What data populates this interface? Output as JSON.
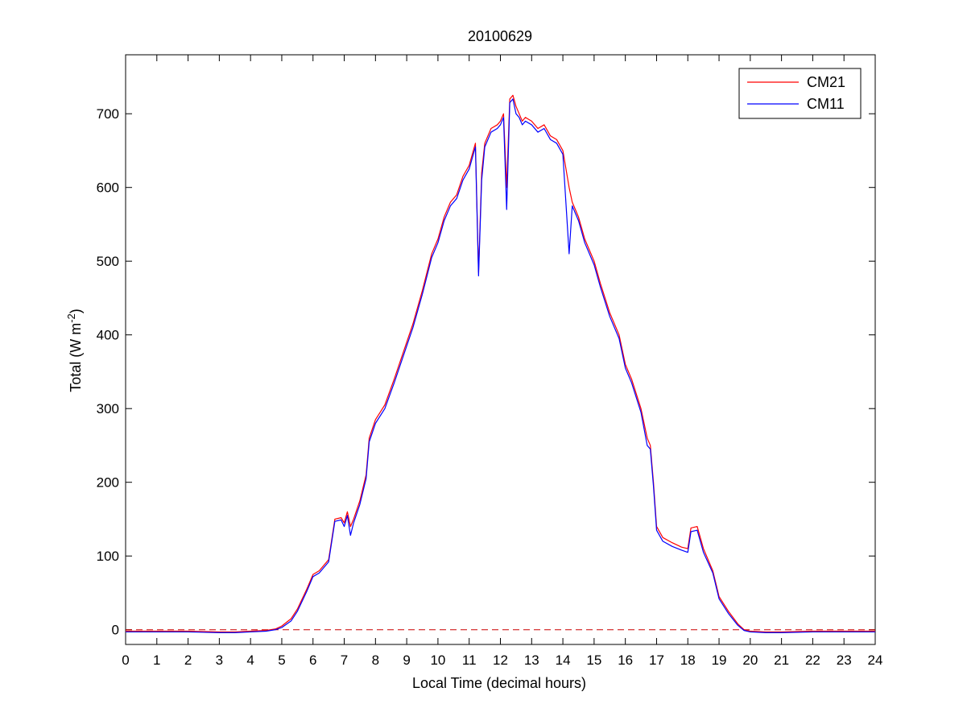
{
  "chart_data": {
    "type": "line",
    "title": "20100629",
    "xlabel": "Local Time (decimal hours)",
    "ylabel": {
      "main": "Total (W m",
      "sup": "-2",
      "close": ")"
    },
    "xlim": [
      0,
      24
    ],
    "ylim": [
      -20,
      780
    ],
    "xticks": [
      0,
      1,
      2,
      3,
      4,
      5,
      6,
      7,
      8,
      9,
      10,
      11,
      12,
      13,
      14,
      15,
      16,
      17,
      18,
      19,
      20,
      21,
      22,
      23,
      24
    ],
    "yticks": [
      0,
      100,
      200,
      300,
      400,
      500,
      600,
      700
    ],
    "grid": false,
    "legend": {
      "placement": "top-right"
    },
    "reference_line": {
      "y": 0,
      "color": "#cc0000",
      "style": "dashed"
    },
    "series": [
      {
        "name": "CM21",
        "color": "#ff0000",
        "x": [
          0,
          1,
          2,
          3,
          3.5,
          4,
          4.5,
          4.8,
          5,
          5.3,
          5.5,
          5.8,
          6,
          6.2,
          6.5,
          6.7,
          6.9,
          7,
          7.1,
          7.2,
          7.3,
          7.5,
          7.7,
          7.8,
          8,
          8.3,
          8.6,
          9,
          9.2,
          9.5,
          9.8,
          10,
          10.2,
          10.4,
          10.6,
          10.8,
          11,
          11.2,
          11.3,
          11.4,
          11.5,
          11.7,
          11.9,
          12,
          12.1,
          12.2,
          12.3,
          12.4,
          12.5,
          12.6,
          12.7,
          12.8,
          13,
          13.2,
          13.4,
          13.6,
          13.8,
          14,
          14.2,
          14.3,
          14.4,
          14.5,
          14.7,
          15,
          15.2,
          15.5,
          15.8,
          16,
          16.2,
          16.5,
          16.7,
          16.8,
          16.9,
          17,
          17.2,
          17.5,
          17.8,
          18,
          18.1,
          18.3,
          18.5,
          18.8,
          19,
          19.3,
          19.6,
          19.8,
          20,
          20.5,
          21,
          22,
          23,
          24
        ],
        "y": [
          -2,
          -2,
          -2,
          -3,
          -3,
          -2,
          -1,
          1,
          5,
          15,
          28,
          55,
          75,
          80,
          95,
          150,
          152,
          145,
          160,
          140,
          150,
          175,
          210,
          260,
          285,
          305,
          340,
          390,
          415,
          460,
          510,
          530,
          560,
          580,
          590,
          615,
          630,
          660,
          485,
          620,
          660,
          680,
          685,
          690,
          700,
          600,
          720,
          725,
          710,
          700,
          690,
          695,
          690,
          680,
          685,
          670,
          665,
          650,
          600,
          580,
          570,
          560,
          530,
          500,
          470,
          430,
          400,
          360,
          340,
          300,
          260,
          250,
          200,
          140,
          125,
          118,
          112,
          110,
          138,
          140,
          110,
          80,
          45,
          25,
          8,
          0,
          -2,
          -3,
          -3,
          -2,
          -2,
          -2
        ],
        "values": [
          -2,
          -2,
          -2,
          -3,
          -3,
          -2,
          -1,
          1,
          5,
          15,
          28,
          55,
          75,
          80,
          95,
          150,
          152,
          145,
          160,
          140,
          150,
          175,
          210,
          260,
          285,
          305,
          340,
          390,
          415,
          460,
          510,
          530,
          560,
          580,
          590,
          615,
          630,
          660,
          485,
          620,
          660,
          680,
          685,
          690,
          700,
          600,
          720,
          725,
          710,
          700,
          690,
          695,
          690,
          680,
          685,
          670,
          665,
          650,
          600,
          580,
          570,
          560,
          530,
          500,
          470,
          430,
          400,
          360,
          340,
          300,
          260,
          250,
          200,
          140,
          125,
          118,
          112,
          110,
          138,
          140,
          110,
          80,
          45,
          25,
          8,
          0,
          -2,
          -3,
          -3,
          -2,
          -2,
          -2
        ]
      },
      {
        "name": "CM11",
        "color": "#0000ff",
        "x": [
          0,
          1,
          2,
          3,
          3.5,
          4,
          4.5,
          4.8,
          5,
          5.3,
          5.5,
          5.8,
          6,
          6.2,
          6.5,
          6.7,
          6.9,
          7,
          7.1,
          7.2,
          7.3,
          7.5,
          7.7,
          7.8,
          8,
          8.3,
          8.6,
          9,
          9.2,
          9.5,
          9.8,
          10,
          10.2,
          10.4,
          10.6,
          10.8,
          11,
          11.2,
          11.3,
          11.4,
          11.5,
          11.7,
          11.9,
          12,
          12.1,
          12.2,
          12.3,
          12.4,
          12.5,
          12.6,
          12.7,
          12.8,
          13,
          13.2,
          13.4,
          13.6,
          13.8,
          14,
          14.2,
          14.3,
          14.4,
          14.5,
          14.7,
          15,
          15.2,
          15.5,
          15.8,
          16,
          16.2,
          16.5,
          16.7,
          16.8,
          16.9,
          17,
          17.2,
          17.5,
          17.8,
          18,
          18.1,
          18.3,
          18.5,
          18.8,
          19,
          19.3,
          19.6,
          19.8,
          20,
          20.5,
          21,
          22,
          23,
          24
        ],
        "y": [
          -3,
          -3,
          -3,
          -4,
          -4,
          -3,
          -2,
          0,
          3,
          12,
          25,
          52,
          72,
          77,
          92,
          147,
          149,
          140,
          155,
          128,
          145,
          170,
          205,
          255,
          280,
          300,
          335,
          385,
          410,
          455,
          505,
          525,
          555,
          575,
          585,
          610,
          625,
          655,
          480,
          610,
          655,
          675,
          680,
          685,
          695,
          570,
          715,
          720,
          700,
          695,
          685,
          690,
          685,
          675,
          680,
          665,
          660,
          645,
          510,
          575,
          565,
          555,
          525,
          495,
          465,
          425,
          395,
          355,
          335,
          295,
          250,
          245,
          195,
          135,
          120,
          113,
          108,
          105,
          133,
          135,
          105,
          77,
          42,
          22,
          6,
          -1,
          -3,
          -4,
          -4,
          -3,
          -3,
          -3
        ],
        "values": [
          -3,
          -3,
          -3,
          -4,
          -4,
          -3,
          -2,
          0,
          3,
          12,
          25,
          52,
          72,
          77,
          92,
          147,
          149,
          140,
          155,
          128,
          145,
          170,
          205,
          255,
          280,
          300,
          335,
          385,
          410,
          455,
          505,
          525,
          555,
          575,
          585,
          610,
          625,
          655,
          480,
          610,
          655,
          675,
          680,
          685,
          695,
          570,
          715,
          720,
          700,
          695,
          685,
          690,
          685,
          675,
          680,
          665,
          660,
          645,
          510,
          575,
          565,
          555,
          525,
          495,
          465,
          425,
          395,
          355,
          335,
          295,
          250,
          245,
          195,
          135,
          120,
          113,
          108,
          105,
          133,
          135,
          105,
          77,
          42,
          22,
          6,
          -1,
          -3,
          -4,
          -4,
          -3,
          -3,
          -3
        ]
      }
    ]
  }
}
